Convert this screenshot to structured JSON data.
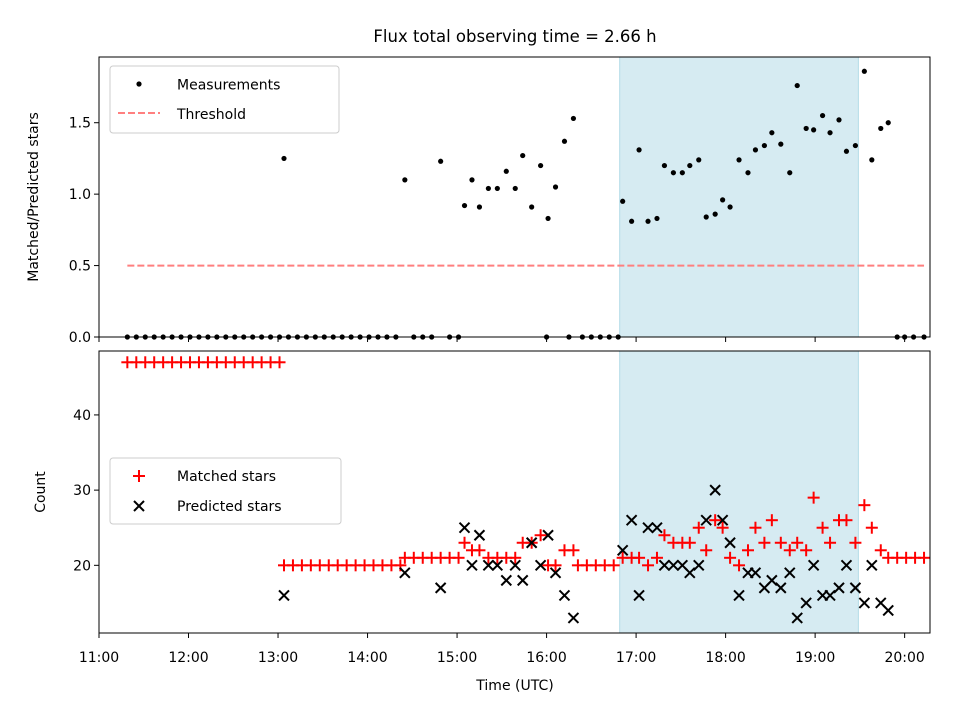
{
  "chart_data": [
    {
      "type": "scatter",
      "title": "Flux total observing time = 2.66 h",
      "ylabel": "Matched/Predicted stars",
      "xlabel": "",
      "xlim": [
        "11:00",
        "20:17"
      ],
      "ylim": [
        0,
        1.96
      ],
      "yticks": [
        "0.0",
        "0.5",
        "1.0",
        "1.5"
      ],
      "legend_position": "upper-left",
      "highlight_span": [
        "16:49",
        "19:29"
      ],
      "colors": {
        "measurements": "#000000",
        "threshold": "#ff7f7f",
        "highlight": "#add8e6"
      },
      "series": [
        {
          "name": "Measurements",
          "marker": "dot",
          "points": [
            [
              "11:19",
              0
            ],
            [
              "11:25",
              0
            ],
            [
              "11:31",
              0
            ],
            [
              "11:37",
              0
            ],
            [
              "11:43",
              0
            ],
            [
              "11:49",
              0
            ],
            [
              "11:55",
              0
            ],
            [
              "12:01",
              0
            ],
            [
              "12:07",
              0
            ],
            [
              "12:13",
              0
            ],
            [
              "12:19",
              0
            ],
            [
              "12:25",
              0
            ],
            [
              "12:31",
              0
            ],
            [
              "12:37",
              0
            ],
            [
              "12:43",
              0
            ],
            [
              "12:49",
              0
            ],
            [
              "12:55",
              0
            ],
            [
              "13:01",
              0
            ],
            [
              "13:04",
              1.25
            ],
            [
              "13:07",
              0
            ],
            [
              "13:13",
              0
            ],
            [
              "13:19",
              0
            ],
            [
              "13:25",
              0
            ],
            [
              "13:31",
              0
            ],
            [
              "13:37",
              0
            ],
            [
              "13:43",
              0
            ],
            [
              "13:49",
              0
            ],
            [
              "13:55",
              0
            ],
            [
              "14:01",
              0
            ],
            [
              "14:07",
              0
            ],
            [
              "14:13",
              0
            ],
            [
              "14:19",
              0
            ],
            [
              "14:25",
              1.1
            ],
            [
              "14:31",
              0
            ],
            [
              "14:37",
              0
            ],
            [
              "14:43",
              0
            ],
            [
              "14:49",
              1.23
            ],
            [
              "14:55",
              0
            ],
            [
              "15:01",
              0
            ],
            [
              "15:05",
              0.92
            ],
            [
              "15:10",
              1.1
            ],
            [
              "15:15",
              0.91
            ],
            [
              "15:21",
              1.04
            ],
            [
              "15:27",
              1.04
            ],
            [
              "15:33",
              1.16
            ],
            [
              "15:39",
              1.04
            ],
            [
              "15:44",
              1.27
            ],
            [
              "15:50",
              0.91
            ],
            [
              "15:56",
              1.2
            ],
            [
              "16:01",
              0.83
            ],
            [
              "16:00",
              0
            ],
            [
              "16:06",
              1.05
            ],
            [
              "16:12",
              1.37
            ],
            [
              "16:15",
              0
            ],
            [
              "16:18",
              1.53
            ],
            [
              "16:24",
              0
            ],
            [
              "16:30",
              0
            ],
            [
              "16:36",
              0
            ],
            [
              "16:42",
              0
            ],
            [
              "16:48",
              0
            ],
            [
              "16:51",
              0.95
            ],
            [
              "16:57",
              0.81
            ],
            [
              "17:02",
              1.31
            ],
            [
              "17:08",
              0.81
            ],
            [
              "17:14",
              0.83
            ],
            [
              "17:19",
              1.2
            ],
            [
              "17:25",
              1.15
            ],
            [
              "17:31",
              1.15
            ],
            [
              "17:36",
              1.2
            ],
            [
              "17:42",
              1.24
            ],
            [
              "17:47",
              0.84
            ],
            [
              "17:53",
              0.86
            ],
            [
              "17:58",
              0.96
            ],
            [
              "18:03",
              0.91
            ],
            [
              "18:09",
              1.24
            ],
            [
              "18:15",
              1.15
            ],
            [
              "18:20",
              1.31
            ],
            [
              "18:26",
              1.34
            ],
            [
              "18:31",
              1.43
            ],
            [
              "18:37",
              1.35
            ],
            [
              "18:43",
              1.15
            ],
            [
              "18:48",
              1.76
            ],
            [
              "18:54",
              1.46
            ],
            [
              "18:59",
              1.45
            ],
            [
              "19:05",
              1.55
            ],
            [
              "19:10",
              1.43
            ],
            [
              "19:16",
              1.52
            ],
            [
              "19:21",
              1.3
            ],
            [
              "19:27",
              1.34
            ],
            [
              "19:33",
              1.86
            ],
            [
              "19:38",
              1.24
            ],
            [
              "19:44",
              1.46
            ],
            [
              "19:49",
              1.5
            ],
            [
              "19:55",
              0
            ],
            [
              "20:00",
              0
            ],
            [
              "20:06",
              0
            ],
            [
              "20:13",
              0
            ]
          ]
        },
        {
          "name": "Threshold",
          "marker": "dashed-line",
          "points": [
            [
              "11:19",
              0.5
            ],
            [
              "20:13",
              0.5
            ]
          ]
        }
      ]
    },
    {
      "type": "scatter",
      "title": "",
      "ylabel": "Count",
      "xlabel": "Time (UTC)",
      "xlim": [
        "11:00",
        "20:17"
      ],
      "ylim": [
        11,
        48.5
      ],
      "yticks": [
        "20",
        "30",
        "40"
      ],
      "xticks": [
        "11:00",
        "12:00",
        "13:00",
        "14:00",
        "15:00",
        "16:00",
        "17:00",
        "18:00",
        "19:00",
        "20:00"
      ],
      "legend_position": "center-left",
      "highlight_span": [
        "16:49",
        "19:29"
      ],
      "colors": {
        "matched": "#ff0000",
        "predicted": "#000000",
        "highlight": "#add8e6"
      },
      "series": [
        {
          "name": "Matched stars",
          "marker": "plus",
          "points": [
            [
              "11:19",
              47
            ],
            [
              "11:25",
              47
            ],
            [
              "11:31",
              47
            ],
            [
              "11:37",
              47
            ],
            [
              "11:43",
              47
            ],
            [
              "11:49",
              47
            ],
            [
              "11:55",
              47
            ],
            [
              "12:01",
              47
            ],
            [
              "12:07",
              47
            ],
            [
              "12:13",
              47
            ],
            [
              "12:19",
              47
            ],
            [
              "12:25",
              47
            ],
            [
              "12:31",
              47
            ],
            [
              "12:37",
              47
            ],
            [
              "12:43",
              47
            ],
            [
              "12:49",
              47
            ],
            [
              "12:55",
              47
            ],
            [
              "13:01",
              47
            ],
            [
              "13:04",
              20
            ],
            [
              "13:10",
              20
            ],
            [
              "13:16",
              20
            ],
            [
              "13:22",
              20
            ],
            [
              "13:28",
              20
            ],
            [
              "13:34",
              20
            ],
            [
              "13:40",
              20
            ],
            [
              "13:46",
              20
            ],
            [
              "13:52",
              20
            ],
            [
              "13:58",
              20
            ],
            [
              "14:04",
              20
            ],
            [
              "14:10",
              20
            ],
            [
              "14:16",
              20
            ],
            [
              "14:22",
              20
            ],
            [
              "14:25",
              21
            ],
            [
              "14:31",
              21
            ],
            [
              "14:37",
              21
            ],
            [
              "14:43",
              21
            ],
            [
              "14:49",
              21
            ],
            [
              "14:55",
              21
            ],
            [
              "15:01",
              21
            ],
            [
              "15:05",
              23
            ],
            [
              "15:10",
              22
            ],
            [
              "15:15",
              22
            ],
            [
              "15:21",
              21
            ],
            [
              "15:27",
              21
            ],
            [
              "15:33",
              21
            ],
            [
              "15:39",
              21
            ],
            [
              "15:44",
              23
            ],
            [
              "15:50",
              23
            ],
            [
              "15:56",
              24
            ],
            [
              "16:01",
              20
            ],
            [
              "16:06",
              20
            ],
            [
              "16:12",
              22
            ],
            [
              "16:18",
              22
            ],
            [
              "16:21",
              20
            ],
            [
              "16:27",
              20
            ],
            [
              "16:33",
              20
            ],
            [
              "16:39",
              20
            ],
            [
              "16:45",
              20
            ],
            [
              "16:51",
              21
            ],
            [
              "16:57",
              21
            ],
            [
              "17:02",
              21
            ],
            [
              "17:08",
              20
            ],
            [
              "17:14",
              21
            ],
            [
              "17:19",
              24
            ],
            [
              "17:25",
              23
            ],
            [
              "17:31",
              23
            ],
            [
              "17:36",
              23
            ],
            [
              "17:42",
              25
            ],
            [
              "17:47",
              22
            ],
            [
              "17:53",
              26
            ],
            [
              "17:58",
              25
            ],
            [
              "18:03",
              21
            ],
            [
              "18:09",
              20
            ],
            [
              "18:15",
              22
            ],
            [
              "18:20",
              25
            ],
            [
              "18:26",
              23
            ],
            [
              "18:31",
              26
            ],
            [
              "18:37",
              23
            ],
            [
              "18:43",
              22
            ],
            [
              "18:48",
              23
            ],
            [
              "18:54",
              22
            ],
            [
              "18:59",
              29
            ],
            [
              "19:05",
              25
            ],
            [
              "19:10",
              23
            ],
            [
              "19:16",
              26
            ],
            [
              "19:21",
              26
            ],
            [
              "19:27",
              23
            ],
            [
              "19:33",
              28
            ],
            [
              "19:38",
              25
            ],
            [
              "19:44",
              22
            ],
            [
              "19:49",
              21
            ],
            [
              "19:55",
              21
            ],
            [
              "20:01",
              21
            ],
            [
              "20:07",
              21
            ],
            [
              "20:13",
              21
            ]
          ]
        },
        {
          "name": "Predicted stars",
          "marker": "x",
          "points": [
            [
              "13:04",
              16
            ],
            [
              "14:25",
              19
            ],
            [
              "14:49",
              17
            ],
            [
              "15:05",
              25
            ],
            [
              "15:10",
              20
            ],
            [
              "15:15",
              24
            ],
            [
              "15:21",
              20
            ],
            [
              "15:27",
              20
            ],
            [
              "15:33",
              18
            ],
            [
              "15:39",
              20
            ],
            [
              "15:44",
              18
            ],
            [
              "15:50",
              23
            ],
            [
              "15:56",
              20
            ],
            [
              "16:01",
              24
            ],
            [
              "16:06",
              19
            ],
            [
              "16:12",
              16
            ],
            [
              "16:18",
              13
            ],
            [
              "16:51",
              22
            ],
            [
              "16:57",
              26
            ],
            [
              "17:02",
              16
            ],
            [
              "17:08",
              25
            ],
            [
              "17:14",
              25
            ],
            [
              "17:19",
              20
            ],
            [
              "17:25",
              20
            ],
            [
              "17:31",
              20
            ],
            [
              "17:36",
              19
            ],
            [
              "17:42",
              20
            ],
            [
              "17:47",
              26
            ],
            [
              "17:53",
              30
            ],
            [
              "17:58",
              26
            ],
            [
              "18:03",
              23
            ],
            [
              "18:09",
              16
            ],
            [
              "18:15",
              19
            ],
            [
              "18:20",
              19
            ],
            [
              "18:26",
              17
            ],
            [
              "18:31",
              18
            ],
            [
              "18:37",
              17
            ],
            [
              "18:43",
              19
            ],
            [
              "18:48",
              13
            ],
            [
              "18:54",
              15
            ],
            [
              "18:59",
              20
            ],
            [
              "19:05",
              16
            ],
            [
              "19:10",
              16
            ],
            [
              "19:16",
              17
            ],
            [
              "19:21",
              20
            ],
            [
              "19:27",
              17
            ],
            [
              "19:33",
              15
            ],
            [
              "19:38",
              20
            ],
            [
              "19:44",
              15
            ],
            [
              "19:49",
              14
            ]
          ]
        }
      ]
    }
  ]
}
